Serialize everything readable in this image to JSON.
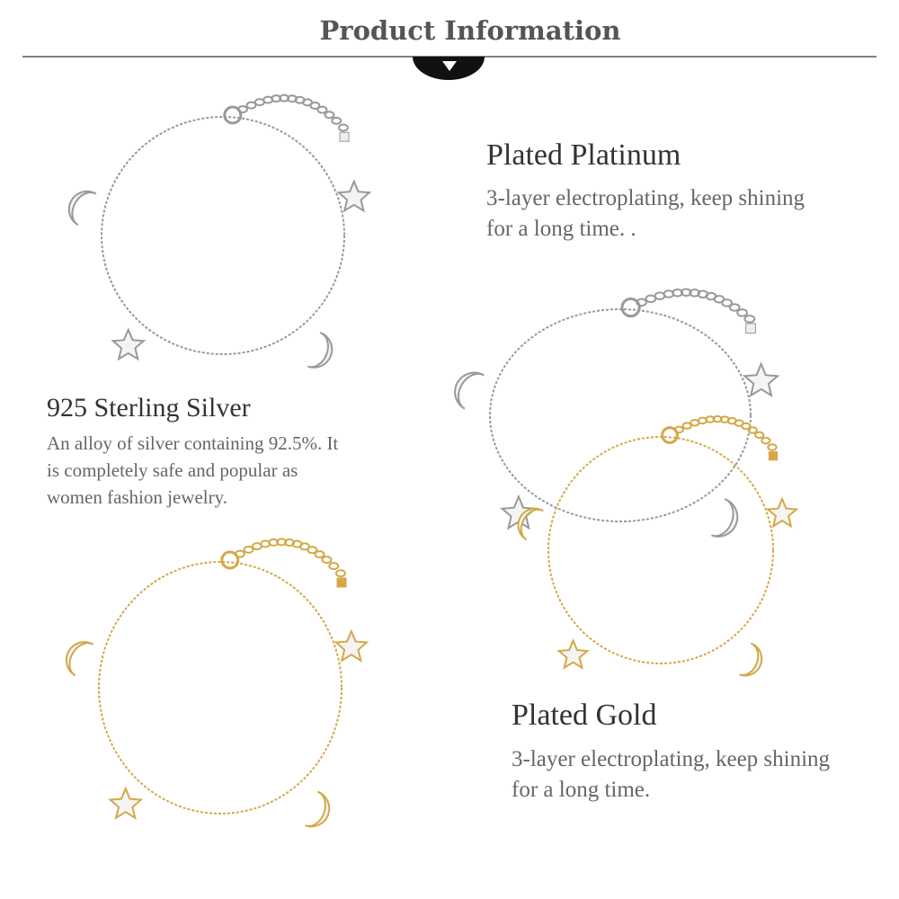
{
  "header": {
    "title": "Product Information"
  },
  "sections": [
    {
      "title": "925 Sterling Silver",
      "description": [
        "An alloy of silver containing 92.5%. It",
        "is completely safe and popular as",
        "women fashion jewelry."
      ]
    },
    {
      "title": "Plated Platinum",
      "description": [
        "3-layer electroplating, keep shining",
        "for a long time. ."
      ]
    },
    {
      "title": "Plated Gold",
      "description": [
        "3-layer electroplating, keep shining",
        "for a long time."
      ]
    }
  ]
}
